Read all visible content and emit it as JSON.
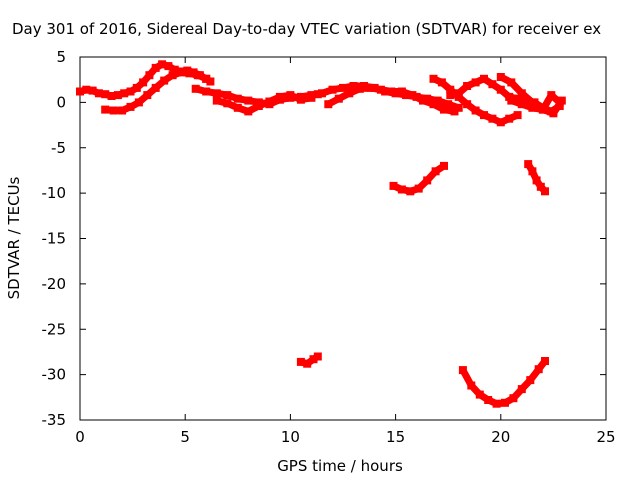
{
  "chart_data": {
    "type": "scatter",
    "title": "Day 301 of 2016, Sidereal Day-to-day VTEC variation (SDTVAR) for receiver ex",
    "xlabel": "GPS time / hours",
    "ylabel": "SDTVAR / TECUs",
    "xlim": [
      0,
      25
    ],
    "ylim": [
      -35,
      5
    ],
    "xticks": [
      0,
      5,
      10,
      15,
      20,
      25
    ],
    "yticks": [
      5,
      0,
      -5,
      -10,
      -15,
      -20,
      -25,
      -30,
      -35
    ],
    "grid": false,
    "marker_color": "#ff0000",
    "series": [
      {
        "name": "trace-main-a",
        "x": [
          0.0,
          0.3,
          0.6,
          0.9,
          1.2,
          1.5,
          1.8,
          2.1,
          2.4,
          2.7,
          3.0,
          3.3,
          3.6,
          3.9,
          4.2,
          4.5,
          4.8,
          5.1,
          5.4,
          5.7,
          6.0,
          6.2
        ],
        "values": [
          1.2,
          1.4,
          1.3,
          1.0,
          0.9,
          0.7,
          0.8,
          1.0,
          1.2,
          1.6,
          2.2,
          3.0,
          3.8,
          4.2,
          4.0,
          3.6,
          3.4,
          3.5,
          3.3,
          3.0,
          2.6,
          2.3
        ]
      },
      {
        "name": "trace-main-b",
        "x": [
          1.2,
          1.6,
          2.0,
          2.4,
          2.8,
          3.2,
          3.6,
          4.0,
          4.4,
          4.8,
          5.2,
          5.6,
          6.0
        ],
        "values": [
          -0.8,
          -0.9,
          -0.9,
          -0.5,
          0.0,
          0.8,
          1.6,
          2.4,
          3.0,
          3.3,
          3.2,
          3.0,
          2.6
        ]
      },
      {
        "name": "trace-main-c",
        "x": [
          5.5,
          6.0,
          6.5,
          7.0,
          7.5,
          8.0,
          8.5,
          9.0,
          9.5,
          10.0,
          10.5,
          11.0,
          11.3
        ],
        "values": [
          1.5,
          1.2,
          1.0,
          0.8,
          0.4,
          0.2,
          0.0,
          -0.2,
          0.3,
          0.5,
          0.6,
          0.8,
          0.9
        ]
      },
      {
        "name": "trace-main-d",
        "x": [
          6.5,
          7.0,
          7.5,
          8.0,
          8.5,
          9.0,
          9.5,
          10.0,
          10.5,
          11.0
        ],
        "values": [
          0.2,
          -0.1,
          -0.6,
          -1.0,
          -0.4,
          0.1,
          0.6,
          0.8,
          0.3,
          0.5
        ]
      },
      {
        "name": "trace-main-e",
        "x": [
          11.5,
          12.0,
          12.5,
          13.0,
          13.5,
          14.0,
          14.5,
          15.0,
          15.5,
          16.0,
          16.5,
          17.0,
          17.5,
          18.0
        ],
        "values": [
          1.0,
          1.4,
          1.6,
          1.8,
          1.8,
          1.6,
          1.2,
          1.0,
          0.8,
          0.6,
          0.4,
          0.2,
          -0.2,
          -0.6
        ]
      },
      {
        "name": "trace-main-f",
        "x": [
          11.8,
          12.3,
          12.8,
          13.3,
          13.8,
          14.3,
          14.8,
          15.3,
          15.8,
          16.3,
          16.8,
          17.3,
          17.8
        ],
        "values": [
          -0.2,
          0.4,
          1.0,
          1.5,
          1.6,
          1.4,
          1.2,
          1.2,
          0.8,
          0.2,
          -0.2,
          -0.8,
          -1.0
        ]
      },
      {
        "name": "trace-main-g",
        "x": [
          16.8,
          17.2,
          17.6,
          18.0,
          18.4,
          18.8,
          19.2,
          19.6,
          20.0,
          20.4,
          20.8
        ],
        "values": [
          2.6,
          2.2,
          1.4,
          0.6,
          -0.2,
          -0.9,
          -1.4,
          -1.8,
          -2.2,
          -1.8,
          -1.4
        ]
      },
      {
        "name": "trace-main-h",
        "x": [
          17.6,
          18.0,
          18.4,
          18.8,
          19.2,
          19.6,
          20.0,
          20.4,
          20.8,
          21.2,
          21.6,
          22.0,
          22.4,
          22.8
        ],
        "values": [
          0.8,
          1.0,
          1.8,
          2.2,
          2.6,
          2.0,
          1.4,
          0.6,
          0.4,
          0.2,
          0.0,
          -0.6,
          -1.0,
          -0.4
        ]
      },
      {
        "name": "trace-main-i",
        "x": [
          20.0,
          20.5,
          21.0,
          21.5,
          22.0,
          22.5,
          22.9
        ],
        "values": [
          2.8,
          2.2,
          1.0,
          0.0,
          -0.8,
          -1.2,
          0.2
        ]
      },
      {
        "name": "trace-main-j",
        "x": [
          20.5,
          21.0,
          21.5,
          22.0,
          22.4,
          22.8
        ],
        "values": [
          0.2,
          -0.2,
          -0.6,
          -0.8,
          0.8,
          0.0
        ]
      },
      {
        "name": "trace-mid-a",
        "x": [
          14.9,
          15.3,
          15.7,
          16.1,
          16.5,
          16.9,
          17.3
        ],
        "values": [
          -9.2,
          -9.6,
          -9.8,
          -9.5,
          -8.6,
          -7.6,
          -7.0
        ]
      },
      {
        "name": "trace-mid-b",
        "x": [
          21.3,
          21.5,
          21.7,
          21.9,
          22.1
        ],
        "values": [
          -6.8,
          -7.6,
          -8.6,
          -9.3,
          -9.8
        ]
      },
      {
        "name": "trace-low-a",
        "x": [
          10.5,
          10.8,
          11.1,
          11.3
        ],
        "values": [
          -28.6,
          -28.8,
          -28.3,
          -28.0
        ]
      },
      {
        "name": "trace-low-b",
        "x": [
          18.2,
          18.6,
          19.0,
          19.4,
          19.8,
          20.2,
          20.6,
          21.0,
          21.4,
          21.8,
          22.1
        ],
        "values": [
          -29.5,
          -31.2,
          -32.2,
          -32.8,
          -33.2,
          -33.1,
          -32.6,
          -31.6,
          -30.6,
          -29.4,
          -28.5
        ]
      }
    ]
  }
}
